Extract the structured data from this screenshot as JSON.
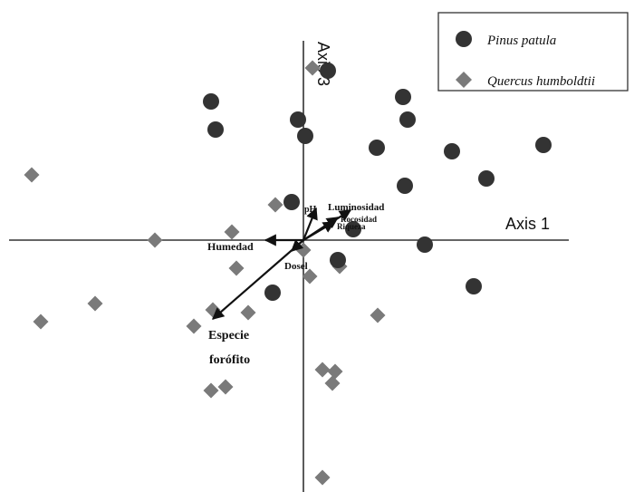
{
  "chart_data": {
    "type": "scatter",
    "x_axis_label": "Axis 1",
    "y_axis_label": "Axis 3",
    "grid": false,
    "legend_placement": "top-right",
    "colors": {
      "pinus": "#333333",
      "quercus": "#7a7a7a",
      "axis": "#333333",
      "arrow": "#111111"
    },
    "series": [
      {
        "name": "Pinus patula",
        "marker": "circle",
        "points": [
          [
            0.27,
            1.87
          ],
          [
            -1.02,
            1.53
          ],
          [
            -0.97,
            1.22
          ],
          [
            -0.06,
            1.33
          ],
          [
            0.02,
            1.15
          ],
          [
            1.1,
            1.58
          ],
          [
            1.15,
            1.33
          ],
          [
            0.81,
            1.02
          ],
          [
            1.64,
            0.98
          ],
          [
            2.65,
            1.05
          ],
          [
            2.02,
            0.68
          ],
          [
            1.12,
            0.6
          ],
          [
            -0.13,
            0.42
          ],
          [
            0.55,
            0.12
          ],
          [
            1.34,
            -0.05
          ],
          [
            0.38,
            -0.22
          ],
          [
            -0.34,
            -0.58
          ],
          [
            1.88,
            -0.51
          ]
        ]
      },
      {
        "name": "Quercus humboldtii",
        "marker": "diamond",
        "points": [
          [
            0.1,
            1.9
          ],
          [
            -3.0,
            0.72
          ],
          [
            -0.31,
            0.39
          ],
          [
            -0.79,
            0.09
          ],
          [
            -1.64,
            0.0
          ],
          [
            0.0,
            -0.11
          ],
          [
            -0.74,
            -0.31
          ],
          [
            0.07,
            -0.4
          ],
          [
            0.4,
            -0.29
          ],
          [
            -2.3,
            -0.7
          ],
          [
            -1.0,
            -0.77
          ],
          [
            -0.61,
            -0.8
          ],
          [
            -2.9,
            -0.9
          ],
          [
            -1.21,
            -0.95
          ],
          [
            0.82,
            -0.83
          ],
          [
            0.21,
            -1.43
          ],
          [
            0.35,
            -1.45
          ],
          [
            0.32,
            -1.58
          ],
          [
            -0.86,
            -1.62
          ],
          [
            -1.02,
            -1.66
          ],
          [
            0.21,
            -2.62
          ]
        ]
      }
    ],
    "vectors": [
      {
        "name": "pH",
        "x": 0.14,
        "y": 0.35
      },
      {
        "name": "Luminosidad",
        "x": 0.52,
        "y": 0.33
      },
      {
        "name": "Rocosidad",
        "x": 0.38,
        "y": 0.25
      },
      {
        "name": "Riqueza",
        "x": 0.34,
        "y": 0.2
      },
      {
        "name": "Humedad",
        "x": -0.42,
        "y": 0.0
      },
      {
        "name": "Dosel",
        "x": -0.13,
        "y": -0.12
      },
      {
        "name": "Especie forófito",
        "x": -1.0,
        "y": -0.87
      }
    ],
    "vector_labels": {
      "pH": "pH",
      "Luminosidad": "Luminosidad",
      "Rocosidad": "Rocosidad",
      "Riqueza": "Riqueza",
      "Humedad": "Humedad",
      "Dosel": "Dosel",
      "especie_line1": "Especie",
      "especie_line2": "forófito"
    }
  }
}
